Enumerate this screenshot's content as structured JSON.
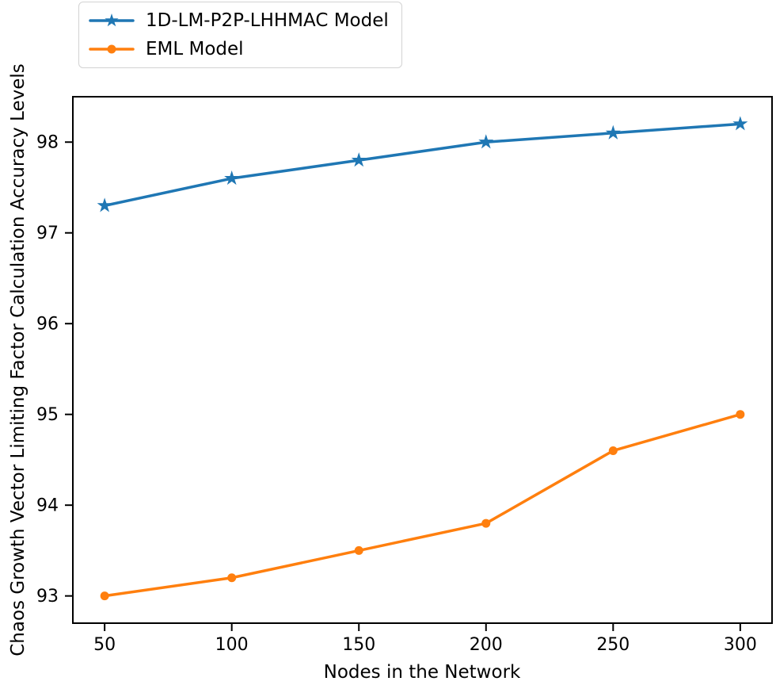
{
  "figure": {
    "background": "#ffffff",
    "axis_color": "#000000",
    "text_color": "#000000",
    "legend_border_color": "#d3d3d3"
  },
  "chart_data": {
    "type": "line",
    "title": "",
    "xlabel": "Nodes in the Network",
    "ylabel": "Chaos Growth Vector Limiting Factor Calculation Accuracy Levels",
    "x": [
      50,
      100,
      150,
      200,
      250,
      300
    ],
    "xticks": [
      "50",
      "100",
      "150",
      "200",
      "250",
      "300"
    ],
    "yticks": [
      "93",
      "94",
      "95",
      "96",
      "97",
      "98"
    ],
    "xlim": [
      37.5,
      312.5
    ],
    "ylim": [
      92.7,
      98.5
    ],
    "grid": false,
    "legend_position": "upper-left-outside",
    "series": [
      {
        "name": "1D-LM-P2P-LHHMAC Model",
        "color": "#1f77b4",
        "marker": "star",
        "values": [
          97.3,
          97.6,
          97.8,
          98.0,
          98.1,
          98.2
        ]
      },
      {
        "name": "EML Model",
        "color": "#ff7f0e",
        "marker": "circle",
        "values": [
          93.0,
          93.2,
          93.5,
          93.8,
          94.6,
          95.0
        ]
      }
    ]
  }
}
